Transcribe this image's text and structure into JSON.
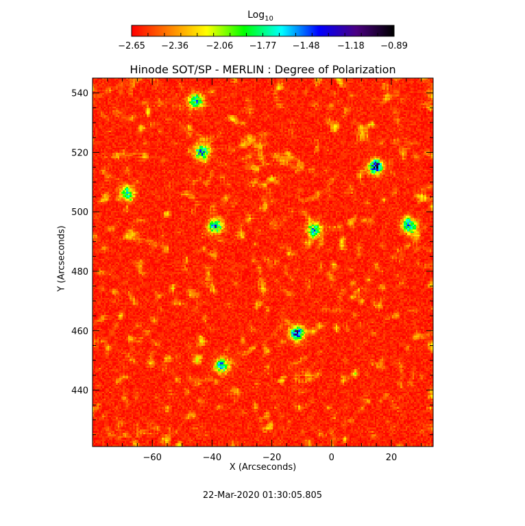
{
  "chart_data": {
    "type": "heatmap",
    "title": "Hinode SOT/SP - MERLIN : Degree of Polarization",
    "xlabel": "X (Arcseconds)",
    "ylabel": "Y (Arcseconds)",
    "xlim": [
      -80,
      34
    ],
    "ylim": [
      421,
      545
    ],
    "x_ticks": [
      -60,
      -40,
      -20,
      0,
      20
    ],
    "y_ticks": [
      440,
      460,
      480,
      500,
      520,
      540
    ],
    "x_tick_labels": [
      "−60",
      "−40",
      "−20",
      "0",
      "20"
    ],
    "y_tick_labels": [
      "440",
      "460",
      "480",
      "500",
      "520",
      "540"
    ],
    "colorbar": {
      "title": "Log",
      "title_subscript": "10",
      "range": [
        -2.65,
        -0.89
      ],
      "tick_values": [
        -2.65,
        -2.36,
        -2.06,
        -1.77,
        -1.48,
        -1.18,
        -0.89
      ],
      "tick_labels": [
        "−2.65",
        "−2.36",
        "−2.06",
        "−1.77",
        "−1.48",
        "−1.18",
        "−0.89"
      ],
      "colormap": [
        "#ff0000",
        "#ff8000",
        "#ffff00",
        "#00ff00",
        "#00ffff",
        "#0000ff",
        "#4b0082",
        "#000000"
      ]
    },
    "timestamp": "22-Mar-2020 01:30:05.805"
  }
}
